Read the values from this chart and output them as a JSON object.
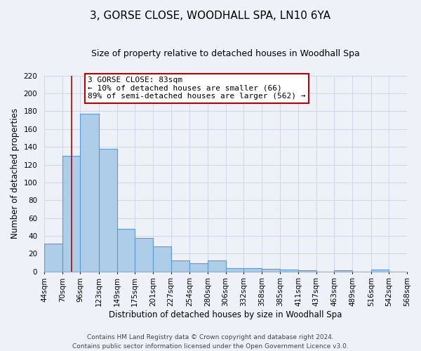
{
  "title": "3, GORSE CLOSE, WOODHALL SPA, LN10 6YA",
  "subtitle": "Size of property relative to detached houses in Woodhall Spa",
  "xlabel": "Distribution of detached houses by size in Woodhall Spa",
  "ylabel": "Number of detached properties",
  "bar_values": [
    31,
    130,
    177,
    138,
    48,
    38,
    28,
    12,
    9,
    12,
    4,
    4,
    3,
    2,
    1,
    0,
    1,
    0,
    2,
    0
  ],
  "bin_labels": [
    "44sqm",
    "70sqm",
    "96sqm",
    "123sqm",
    "149sqm",
    "175sqm",
    "201sqm",
    "227sqm",
    "254sqm",
    "280sqm",
    "306sqm",
    "332sqm",
    "358sqm",
    "385sqm",
    "411sqm",
    "437sqm",
    "463sqm",
    "489sqm",
    "516sqm",
    "542sqm",
    "568sqm"
  ],
  "bar_color": "#aecde8",
  "bar_edge_color": "#5b9bd5",
  "vline_x": 83,
  "vline_color": "#bb0000",
  "annotation_text_line1": "3 GORSE CLOSE: 83sqm",
  "annotation_text_line2": "← 10% of detached houses are smaller (66)",
  "annotation_text_line3": "89% of semi-detached houses are larger (562) →",
  "annotation_box_color": "white",
  "annotation_box_edgecolor": "#bb0000",
  "ylim": [
    0,
    220
  ],
  "yticks": [
    0,
    20,
    40,
    60,
    80,
    100,
    120,
    140,
    160,
    180,
    200,
    220
  ],
  "footer_line1": "Contains HM Land Registry data © Crown copyright and database right 2024.",
  "footer_line2": "Contains public sector information licensed under the Open Government Licence v3.0.",
  "background_color": "#eef2f8",
  "grid_color": "#d0d8e8",
  "title_fontsize": 11,
  "subtitle_fontsize": 9,
  "axis_label_fontsize": 8.5,
  "tick_fontsize": 7.5,
  "footer_fontsize": 6.5,
  "annot_fontsize": 8
}
